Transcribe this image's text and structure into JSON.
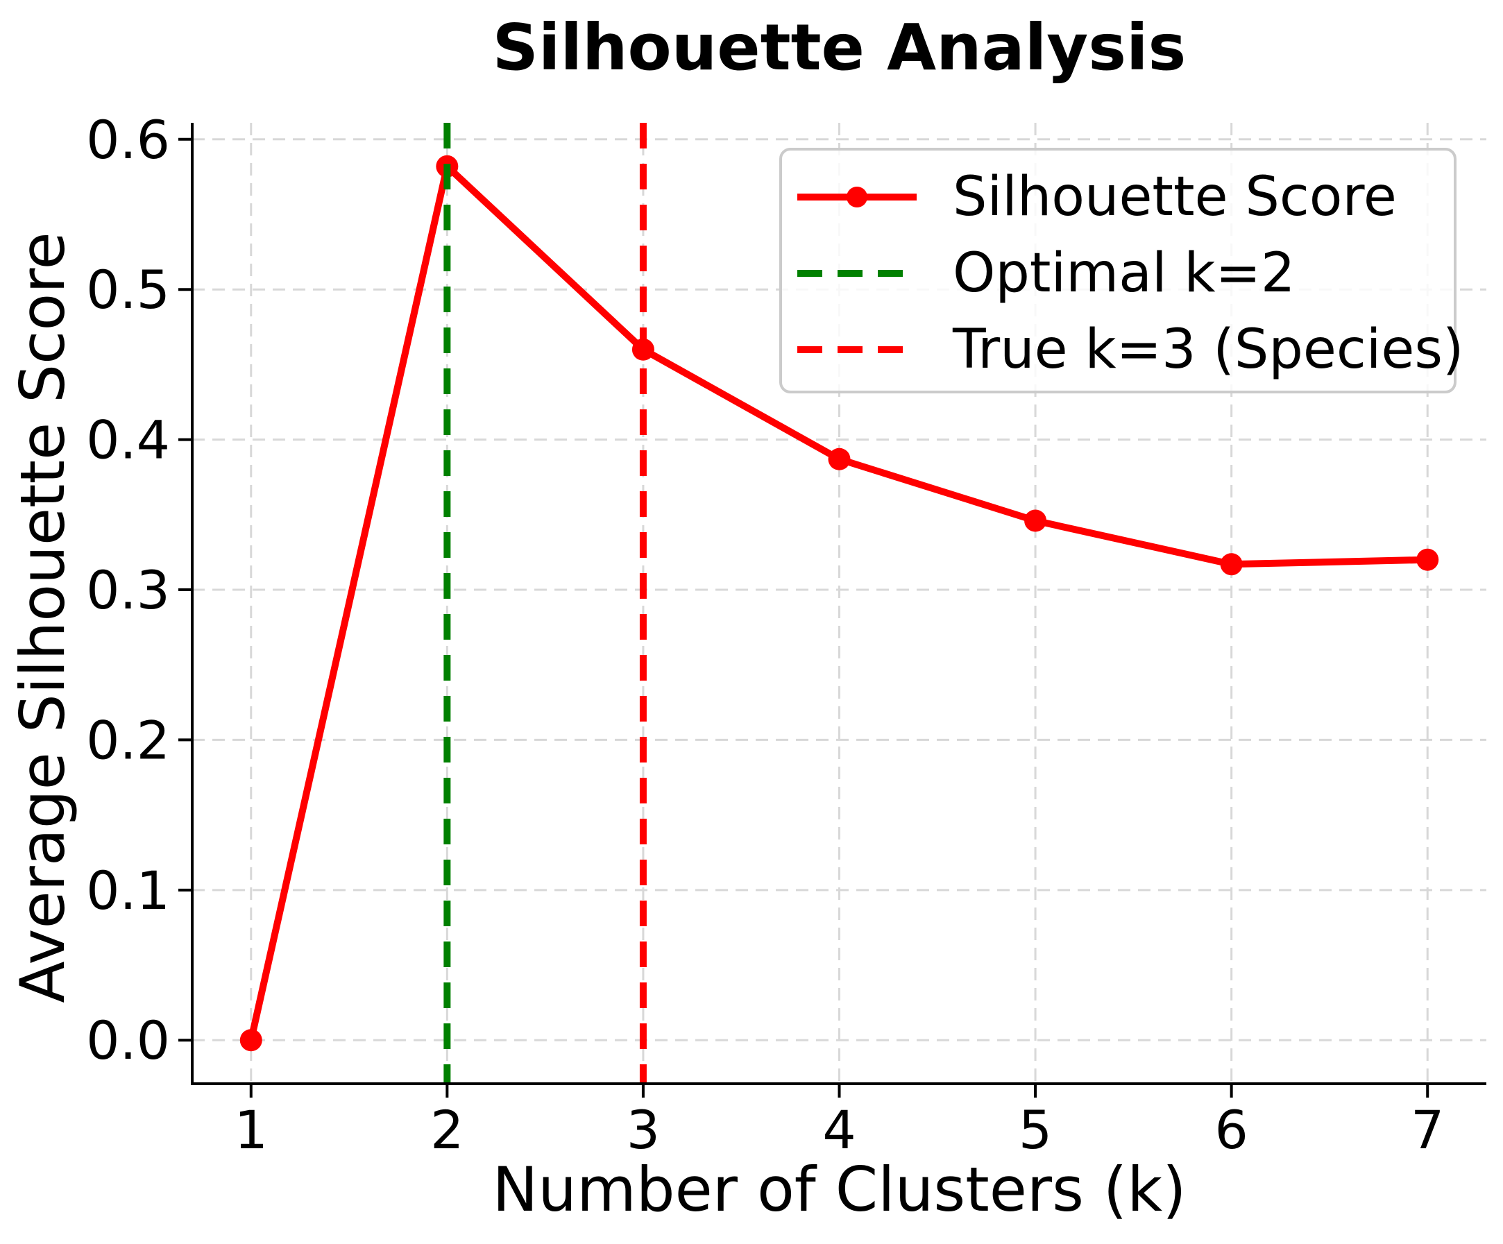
{
  "chart_data": {
    "type": "line",
    "title": "Silhouette Analysis",
    "xlabel": "Number of Clusters (k)",
    "ylabel": "Average Silhouette Score",
    "x": [
      1,
      2,
      3,
      4,
      5,
      6,
      7
    ],
    "series": [
      {
        "name": "Silhouette Score",
        "color": "#ff0000",
        "marker": "circle",
        "line_style": "solid",
        "values": [
          0.0,
          0.582,
          0.46,
          0.387,
          0.346,
          0.317,
          0.32
        ]
      }
    ],
    "vlines": [
      {
        "label": "Optimal k=2",
        "x": 2,
        "color": "#008000",
        "style": "dashed"
      },
      {
        "label": "True k=3 (Species)",
        "x": 3,
        "color": "#ff0000",
        "style": "dashed"
      }
    ],
    "xticks": [
      1,
      2,
      3,
      4,
      5,
      6,
      7
    ],
    "xtick_labels": [
      "1",
      "2",
      "3",
      "4",
      "5",
      "6",
      "7"
    ],
    "yticks": [
      0.0,
      0.1,
      0.2,
      0.3,
      0.4,
      0.5,
      0.6
    ],
    "ytick_labels": [
      "0.0",
      "0.1",
      "0.2",
      "0.3",
      "0.4",
      "0.5",
      "0.6"
    ],
    "xlim": [
      0.7,
      7.3
    ],
    "ylim": [
      -0.029,
      0.611
    ],
    "grid": true,
    "grid_color": "#d8d8d8",
    "axis_color": "#000000",
    "legend_position": "upper right",
    "legend": [
      "Silhouette Score",
      "Optimal k=2",
      "True k=3 (Species)"
    ]
  }
}
